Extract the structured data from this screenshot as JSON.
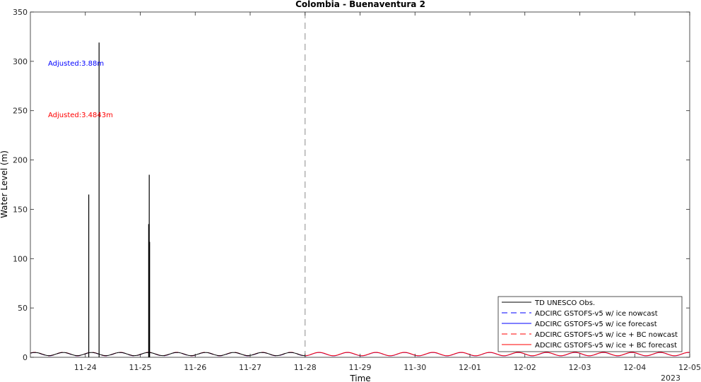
{
  "chart_data": {
    "type": "line",
    "title": "Colombia - Buenaventura 2",
    "xlabel": "Time",
    "ylabel": "Water Level (m)",
    "year_label": "2023",
    "x_range": [
      "2023-11-23",
      "2023-12-05"
    ],
    "x_ticks": [
      "11-24",
      "11-25",
      "11-26",
      "11-27",
      "11-28",
      "11-29",
      "11-30",
      "12-01",
      "12-02",
      "12-03",
      "12-04",
      "12-05"
    ],
    "ylim": [
      0,
      350
    ],
    "y_ticks": [
      0,
      50,
      100,
      150,
      200,
      250,
      300,
      350
    ],
    "grid": false,
    "legend_position": "bottom-right",
    "nowcast_forecast_split": "2023-11-28",
    "annotations": [
      {
        "text": "Adjusted:3.88m",
        "color": "#0000ff"
      },
      {
        "text": "Adjusted:3.4843m",
        "color": "#ff0000"
      }
    ],
    "series": [
      {
        "name": "TD UNESCO Obs.",
        "color": "#000000",
        "style": "solid",
        "tide": {
          "mean": 3.3,
          "amplitude": 1.6,
          "period_days": 0.5175
        },
        "x_end": "2023-11-28",
        "spikes": [
          {
            "x": "2023-11-24 01:30",
            "y": 165
          },
          {
            "x": "2023-11-24 06:00",
            "y": 319
          },
          {
            "x": "2023-11-25 03:40",
            "y": 135
          },
          {
            "x": "2023-11-25 03:55",
            "y": 185
          },
          {
            "x": "2023-11-25 04:05",
            "y": 117
          }
        ]
      },
      {
        "name": "ADCIRC GSTOFS-v5 w/ ice nowcast",
        "color": "#0000ff",
        "style": "dashed",
        "tide": {
          "mean": 3.2,
          "amplitude": 1.7,
          "period_days": 0.5175
        },
        "x_start": "2023-11-23",
        "x_end": "2023-11-28"
      },
      {
        "name": "ADCIRC GSTOFS-v5 w/ ice forecast",
        "color": "#0000ff",
        "style": "solid",
        "tide": {
          "mean": 3.2,
          "amplitude": 1.7,
          "period_days": 0.5175
        },
        "x_start": "2023-11-28",
        "x_end": "2023-12-05"
      },
      {
        "name": "ADCIRC GSTOFS-v5 w/ ice + BC nowcast",
        "color": "#ff0000",
        "style": "dashed",
        "tide": {
          "mean": 3.3,
          "amplitude": 1.7,
          "period_days": 0.5175
        },
        "x_start": "2023-11-23",
        "x_end": "2023-11-28"
      },
      {
        "name": "ADCIRC GSTOFS-v5 w/ ice + BC forecast",
        "color": "#ff0000",
        "style": "solid",
        "tide": {
          "mean": 3.3,
          "amplitude": 1.7,
          "period_days": 0.5175
        },
        "x_start": "2023-11-28",
        "x_end": "2023-12-05"
      }
    ]
  }
}
